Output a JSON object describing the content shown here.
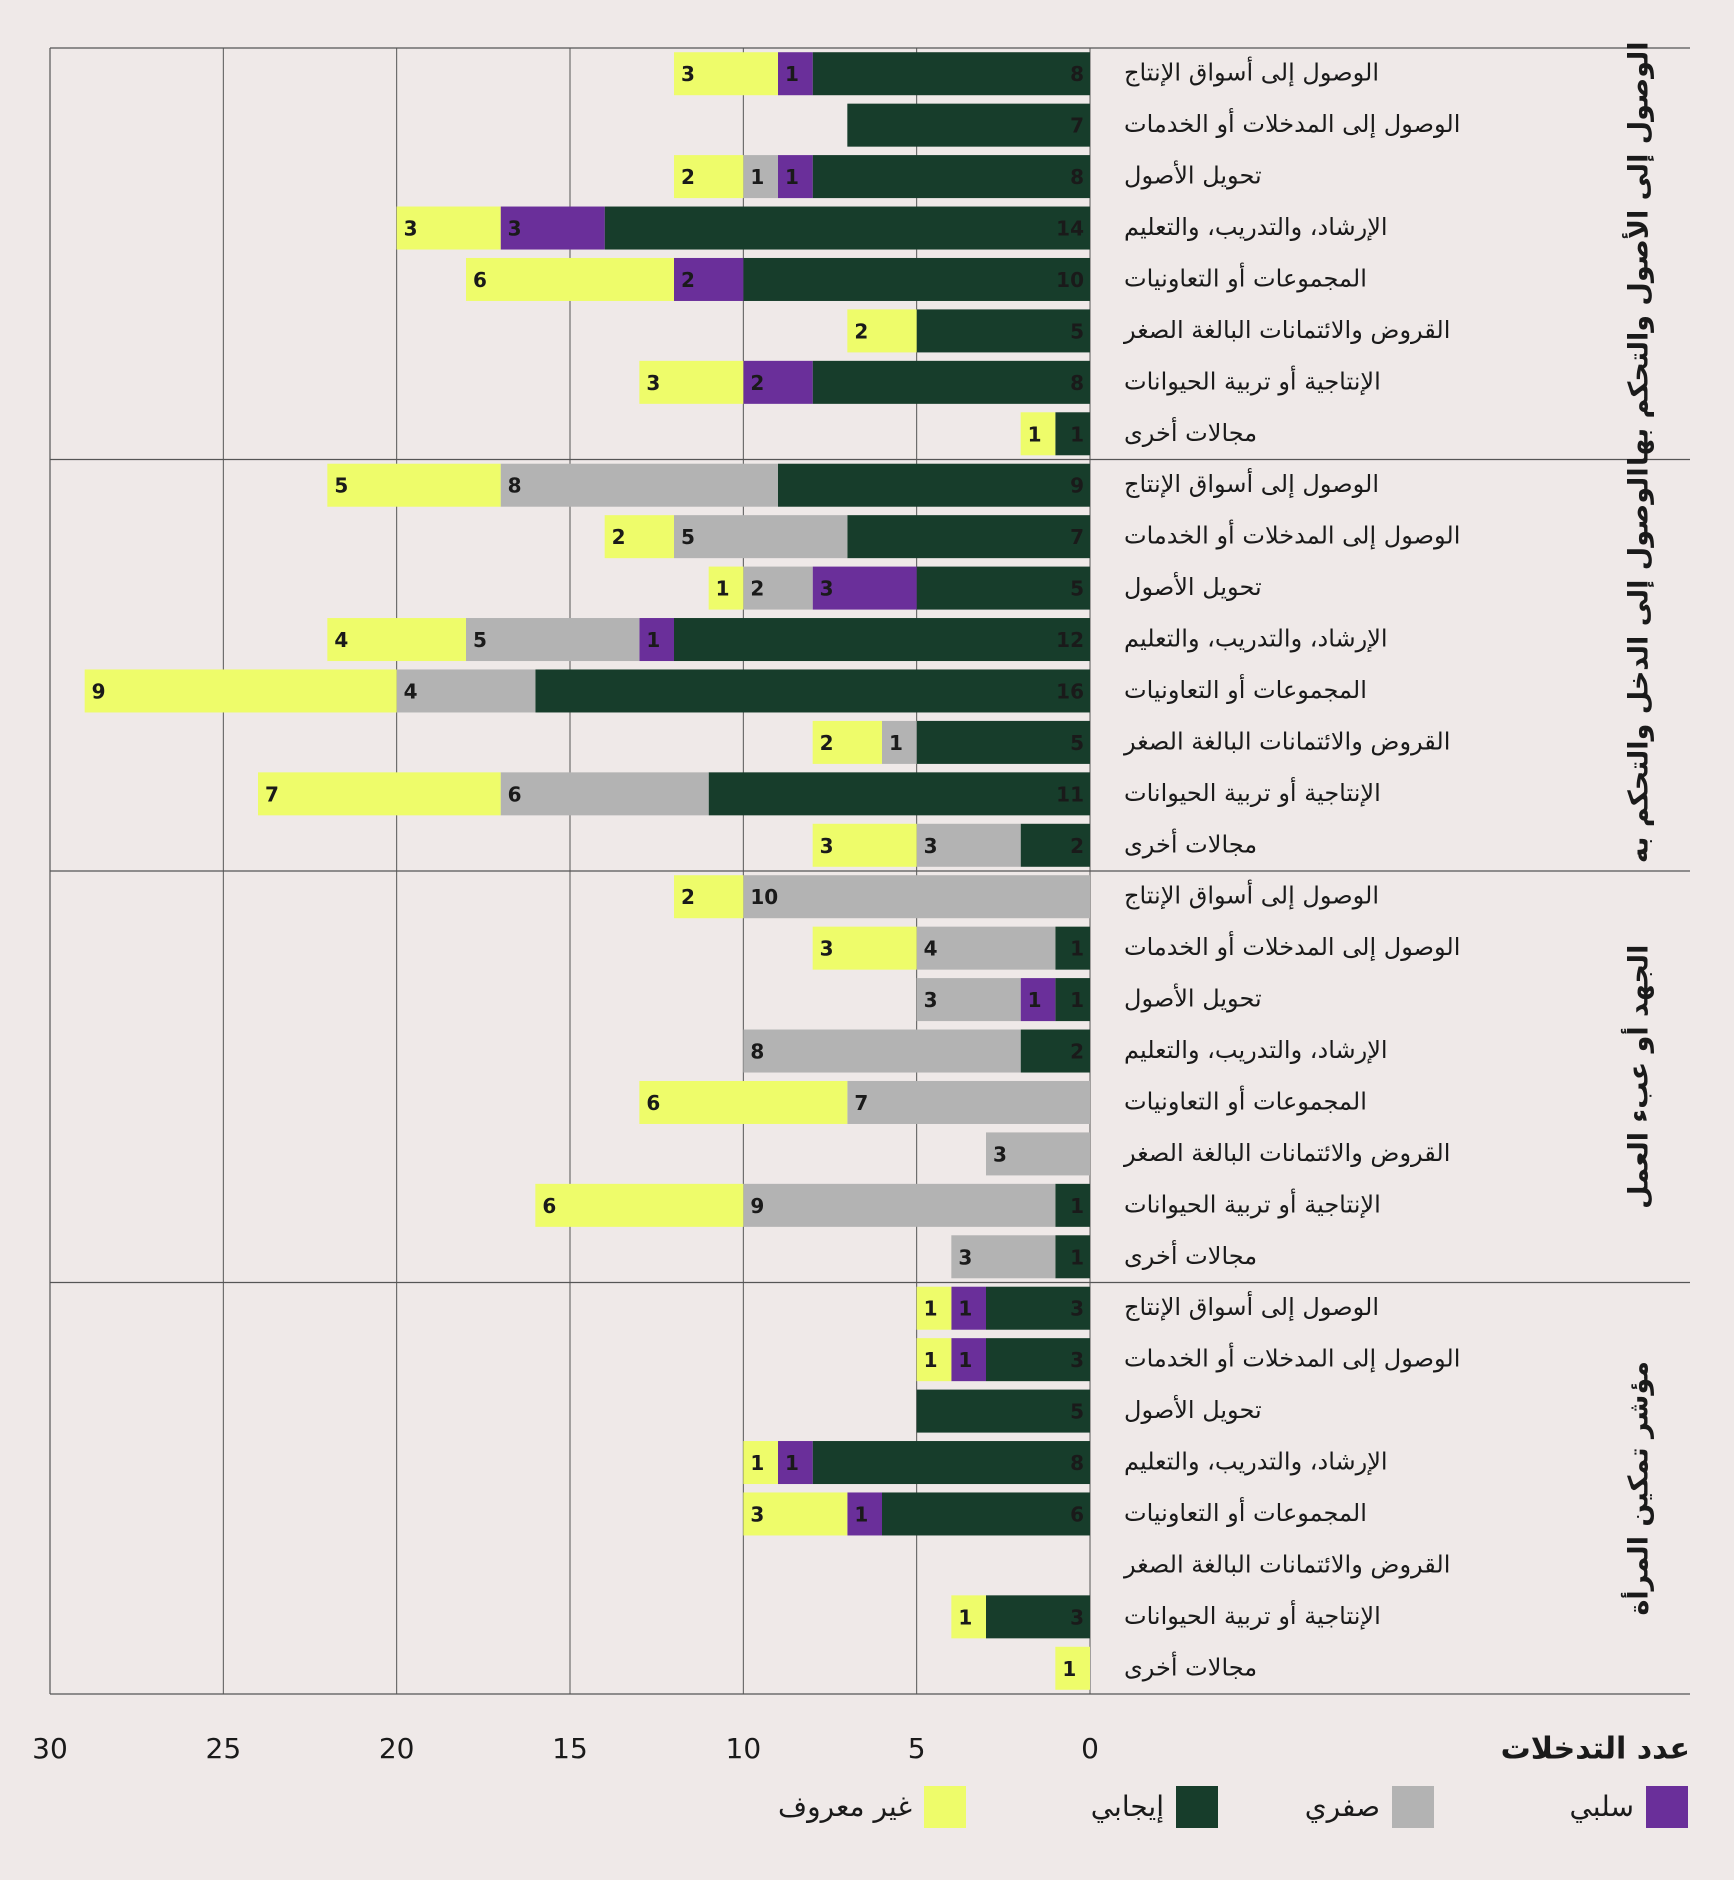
{
  "chart_data": {
    "type": "bar",
    "orientation": "horizontal",
    "stacked": true,
    "xlabel": "عدد التدخلات",
    "xlim": [
      0,
      30
    ],
    "xticks": [
      0,
      5,
      10,
      15,
      20,
      25,
      30
    ],
    "grid": true,
    "group_labels": [
      "الوصول إلى الأصول والتحكم بها",
      "الوصول إلى الدخل والتحكم به",
      "الجهد أو عبء العمل",
      "مؤشر تمكين المرأة"
    ],
    "categories": [
      "الوصول إلى أسواق الإنتاج",
      "الوصول إلى المدخلات أو الخدمات",
      "تحويل الأصول",
      "الإرشاد، والتدريب، والتعليم",
      "المجموعات أو التعاونيات",
      "القروض والائتمانات البالغة الصغر",
      "الإنتاجية أو تربية الحيوانات",
      "مجالات أخرى",
      "الوصول إلى أسواق الإنتاج",
      "الوصول إلى المدخلات أو الخدمات",
      "تحويل الأصول",
      "الإرشاد، والتدريب، والتعليم",
      "المجموعات أو التعاونيات",
      "القروض والائتمانات البالغة الصغر",
      "الإنتاجية أو تربية الحيوانات",
      "مجالات أخرى",
      "الوصول إلى أسواق الإنتاج",
      "الوصول إلى المدخلات أو الخدمات",
      "تحويل الأصول",
      "الإرشاد، والتدريب، والتعليم",
      "المجموعات أو التعاونيات",
      "القروض والائتمانات البالغة الصغر",
      "الإنتاجية أو تربية الحيوانات",
      "مجالات أخرى",
      "الوصول إلى أسواق الإنتاج",
      "الوصول إلى المدخلات أو الخدمات",
      "تحويل الأصول",
      "الإرشاد، والتدريب، والتعليم",
      "المجموعات أو التعاونيات",
      "القروض والائتمانات البالغة الصغر",
      "الإنتاجية أو تربية الحيوانات",
      "مجالات أخرى"
    ],
    "series": [
      {
        "name": "إيجابي",
        "color": "#173d2b",
        "values": [
          8,
          7,
          8,
          14,
          10,
          5,
          8,
          1,
          9,
          7,
          5,
          12,
          16,
          5,
          11,
          2,
          0,
          1,
          1,
          2,
          0,
          0,
          1,
          1,
          3,
          3,
          5,
          8,
          6,
          0,
          3,
          0
        ]
      },
      {
        "name": "سلبي",
        "color": "#6a2f9a",
        "values": [
          1,
          0,
          1,
          3,
          2,
          0,
          2,
          0,
          0,
          0,
          3,
          1,
          0,
          0,
          0,
          0,
          0,
          0,
          1,
          0,
          0,
          0,
          0,
          0,
          1,
          1,
          0,
          1,
          1,
          0,
          0,
          0
        ]
      },
      {
        "name": "صفري",
        "color": "#b3b3b3",
        "values": [
          0,
          0,
          1,
          0,
          0,
          0,
          0,
          0,
          8,
          5,
          2,
          5,
          4,
          1,
          6,
          3,
          10,
          4,
          3,
          8,
          7,
          3,
          9,
          3,
          0,
          0,
          0,
          0,
          0,
          0,
          0,
          0
        ]
      },
      {
        "name": "غير معروف",
        "color": "#eefc6a",
        "values": [
          3,
          0,
          2,
          3,
          6,
          2,
          3,
          1,
          5,
          2,
          1,
          4,
          9,
          2,
          7,
          3,
          2,
          3,
          0,
          0,
          6,
          0,
          6,
          0,
          1,
          1,
          0,
          1,
          3,
          0,
          1,
          1
        ]
      }
    ]
  }
}
